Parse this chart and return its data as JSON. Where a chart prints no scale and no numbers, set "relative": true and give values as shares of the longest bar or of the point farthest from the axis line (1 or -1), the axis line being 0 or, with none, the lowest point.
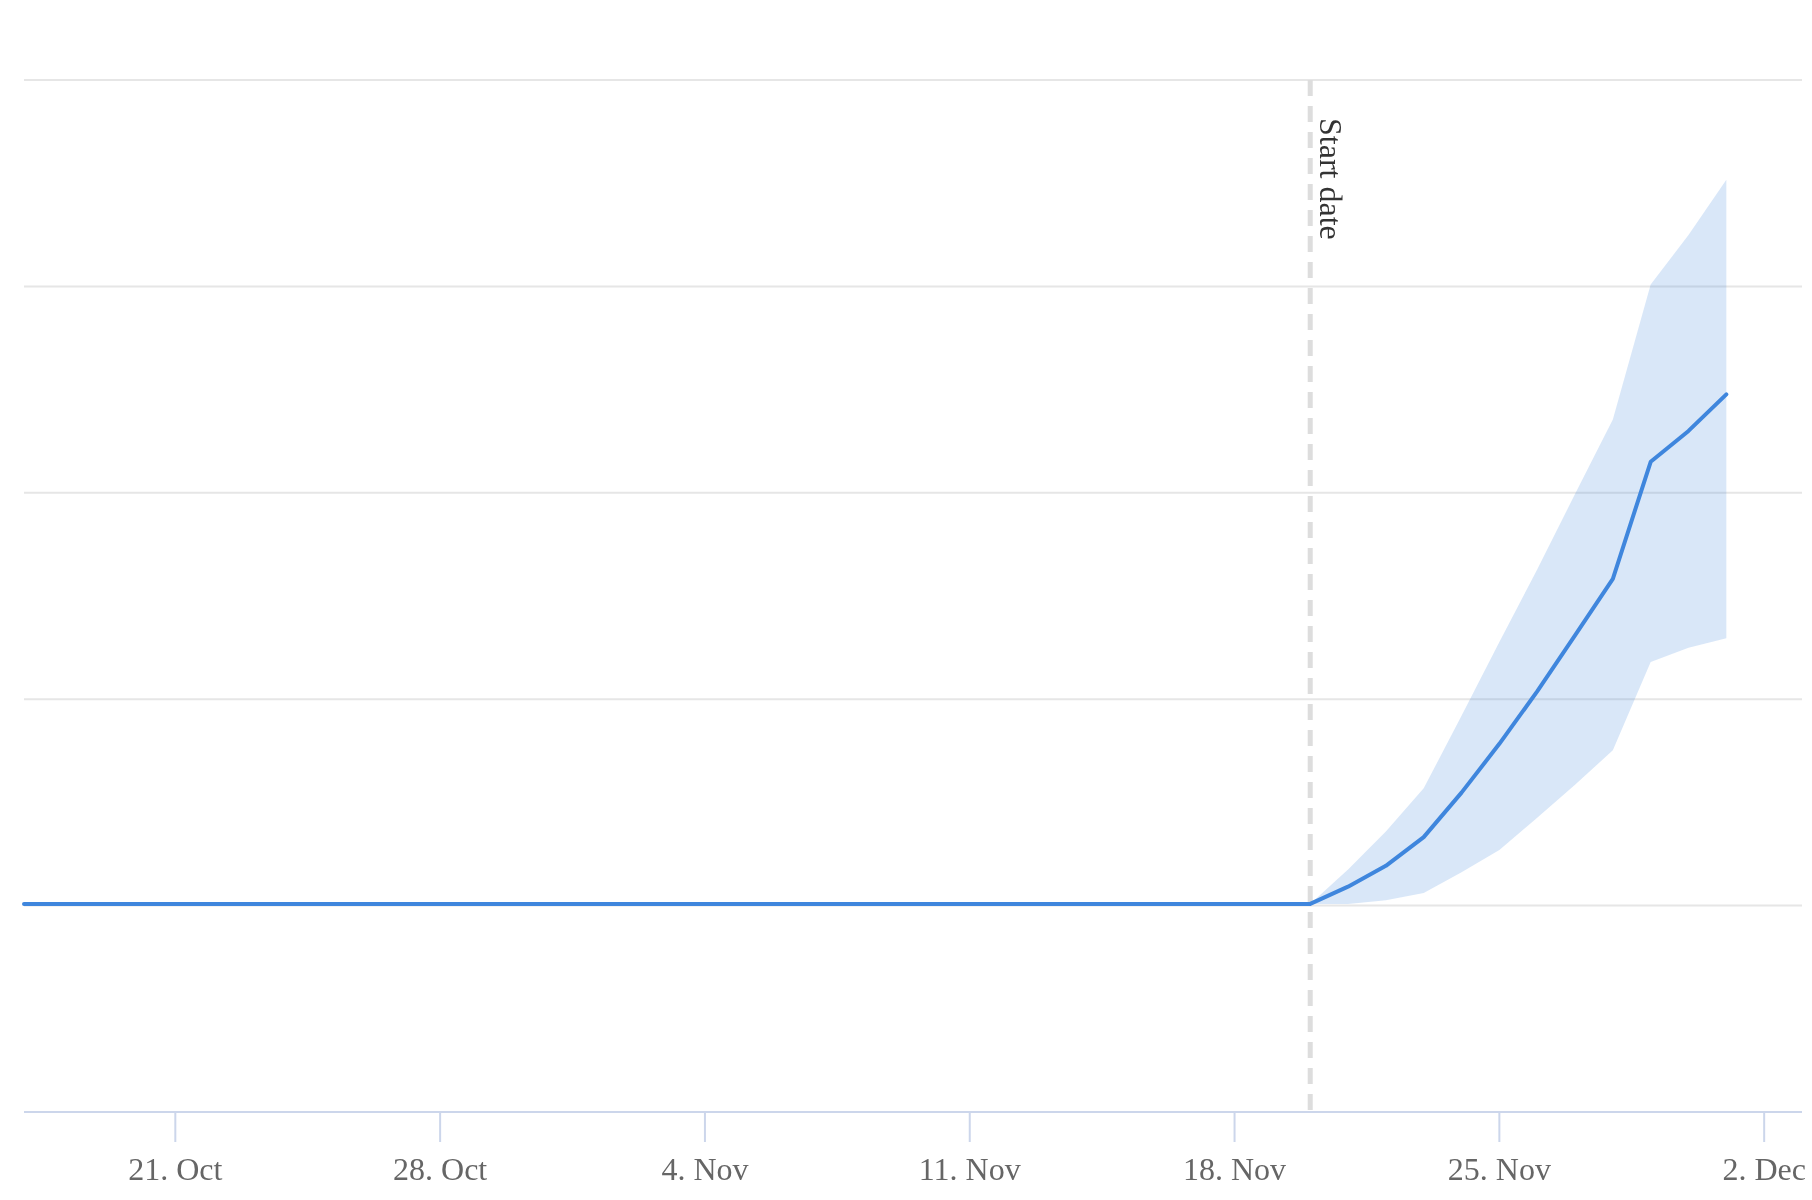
{
  "chart_data": {
    "type": "line",
    "relative": true,
    "grid": "y",
    "xlim": [
      "--10-17",
      "--12-03"
    ],
    "xticks": [
      {
        "value": "--10-21",
        "label": "21. Oct"
      },
      {
        "value": "--10-28",
        "label": "28. Oct"
      },
      {
        "value": "--11-04",
        "label": "4. Nov"
      },
      {
        "value": "--11-11",
        "label": "11. Nov"
      },
      {
        "value": "--11-18",
        "label": "18. Nov"
      },
      {
        "value": "--11-25",
        "label": "25. Nov"
      },
      {
        "value": "--12-02",
        "label": "2. Dec"
      }
    ],
    "series": [
      {
        "color": "#3f86dd",
        "x": [
          "--10-17",
          "--11-20",
          "--11-21",
          "--11-22",
          "--11-23",
          "--11-24",
          "--11-25",
          "--11-26",
          "--11-27",
          "--11-28",
          "--11-29",
          "--11-30",
          "--12-01"
        ],
        "values": [
          0.29,
          0.29,
          0.314,
          0.343,
          0.383,
          0.445,
          0.513,
          0.586,
          0.664,
          0.743,
          0.906,
          0.949,
          1
        ],
        "upper": [
          null,
          0.29,
          0.338,
          0.391,
          0.451,
          0.552,
          0.655,
          0.756,
          0.861,
          0.965,
          1.153,
          1.222,
          1.299
        ],
        "lower": [
          null,
          0.29,
          0.29,
          0.295,
          0.305,
          0.334,
          0.365,
          0.41,
          0.456,
          0.504,
          0.627,
          0.647,
          0.66
        ]
      }
    ],
    "ref_lines": [
      {
        "axis": "x",
        "value": "--11-20",
        "label": "Start date",
        "color": "#dddddd",
        "line_style": "dashed"
      }
    ]
  }
}
